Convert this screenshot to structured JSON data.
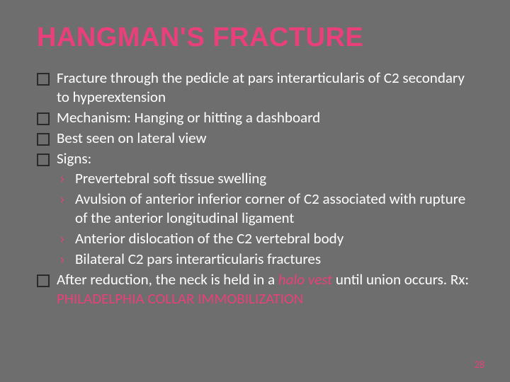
{
  "title": "HANGMAN'S FRACTURE",
  "colors": {
    "background": "#6e6e6e",
    "body_text": "#ffffff",
    "accent": "#e93f7a",
    "bullet_border": "#2a2a2a"
  },
  "typography": {
    "title_fontsize_pt": 28,
    "body_fontsize_pt": 16,
    "title_weight": 700,
    "body_weight": 400
  },
  "bullets": [
    {
      "text": "Fracture through the pedicle at pars interarticularis of C2 secondary to hyperextension"
    },
    {
      "text": "Mechanism: Hanging or hitting a dashboard"
    },
    {
      "text": "Best seen on lateral view"
    },
    {
      "text": "Signs:",
      "sub": [
        "Prevertebral soft tissue swelling",
        "Avulsion of anterior inferior corner of C2 associated with rupture of the anterior longitudinal ligament",
        "Anterior dislocation of the C2 vertebral body",
        "Bilateral C2 pars interarticularis fractures"
      ]
    },
    {
      "text_parts": [
        {
          "t": "After reduction, the neck is held in a ",
          "style": "normal"
        },
        {
          "t": "halo vest",
          "style": "hl-italic"
        },
        {
          "t": " until union occurs. Rx: ",
          "style": "normal"
        },
        {
          "t": "PHILADELPHIA COLLAR IMMOBILIZATION",
          "style": "hl"
        }
      ]
    }
  ],
  "page_number": "28"
}
